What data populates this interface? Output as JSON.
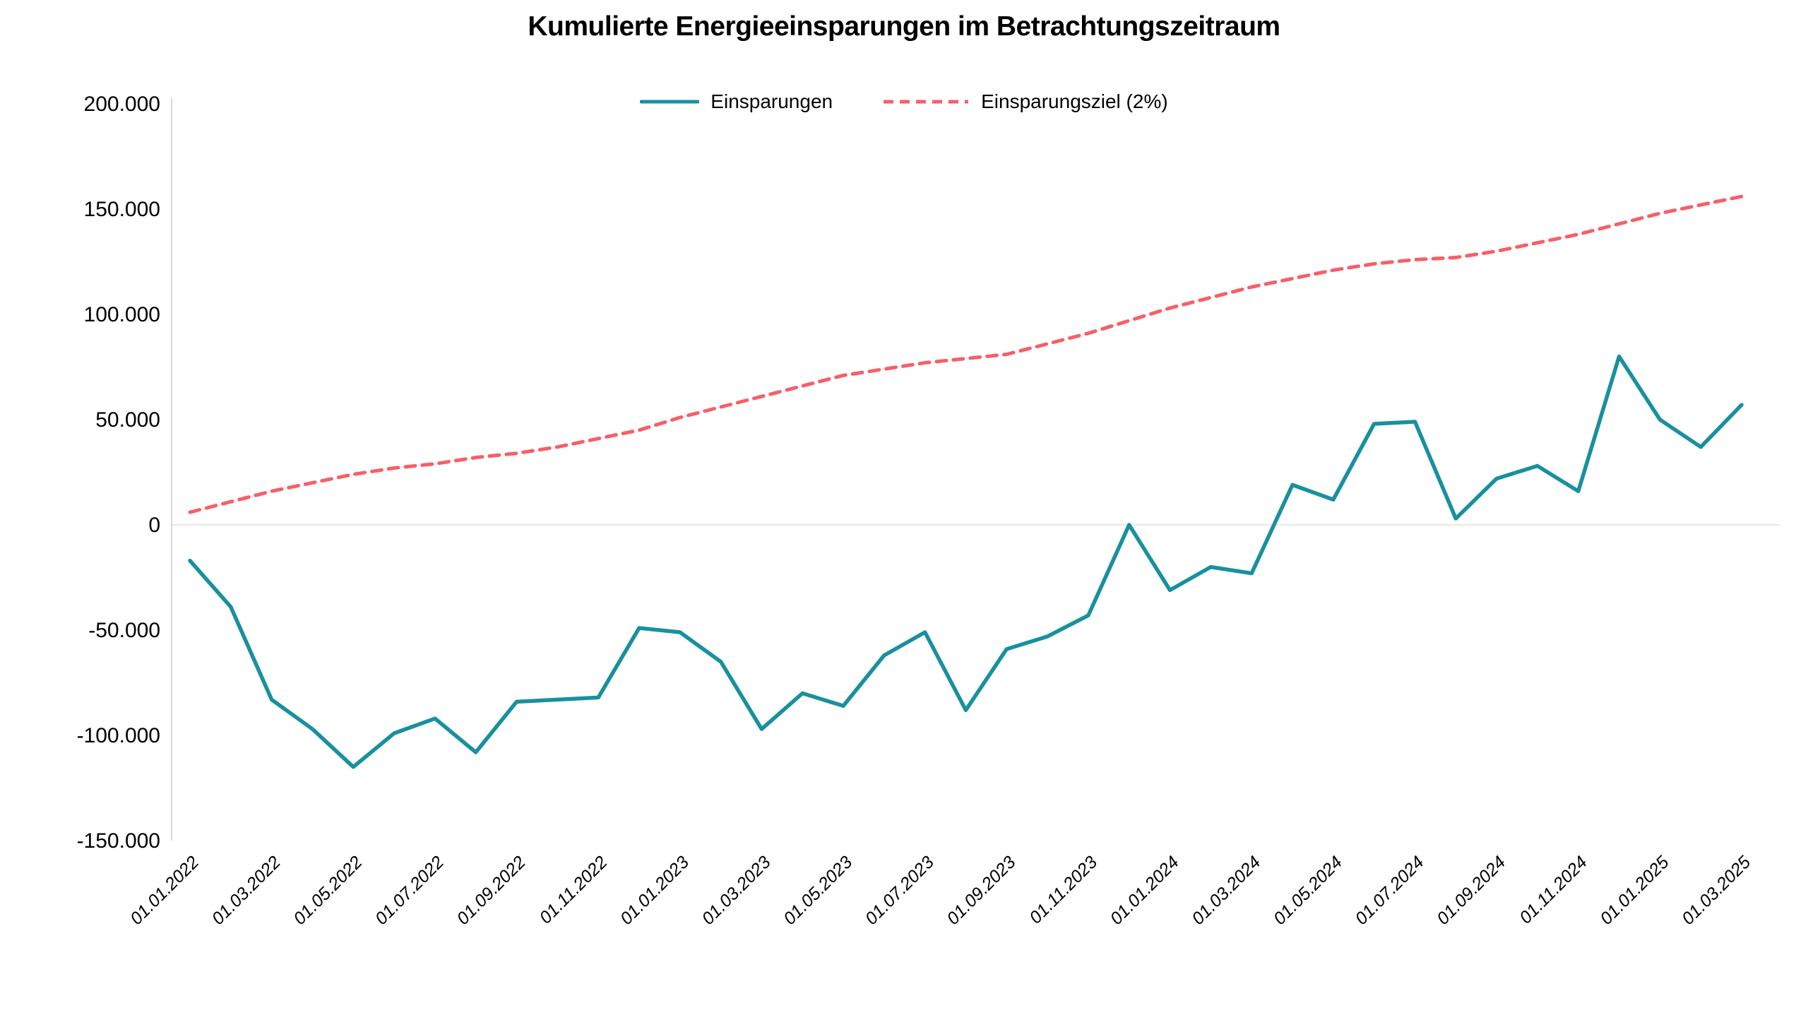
{
  "chart": {
    "colors": {
      "series_main": "#18909f",
      "series_target": "#f75f67",
      "grid_zero_line": "#e8e8e8",
      "axis_line": "#d9d9d9",
      "text": "#000000"
    }
  },
  "chart_data": {
    "type": "line",
    "title": "Kumulierte Energieeinsparungen im Betrachtungszeitraum",
    "xlabel": "",
    "ylabel": "",
    "grid": "horizontal-zero-line-only",
    "legend_position": "top-center",
    "ylim": [
      -150000,
      200000
    ],
    "y_ticks": [
      200000,
      150000,
      100000,
      50000,
      0,
      -50000,
      -100000,
      -150000
    ],
    "y_tick_labels": [
      "200.000",
      "150.000",
      "100.000",
      "50.000",
      "0",
      "-50.000",
      "-100.000",
      "-150.000"
    ],
    "x": [
      "01.01.2022",
      "01.02.2022",
      "01.03.2022",
      "01.04.2022",
      "01.05.2022",
      "01.06.2022",
      "01.07.2022",
      "01.08.2022",
      "01.09.2022",
      "01.10.2022",
      "01.11.2022",
      "01.12.2022",
      "01.01.2023",
      "01.02.2023",
      "01.03.2023",
      "01.04.2023",
      "01.05.2023",
      "01.06.2023",
      "01.07.2023",
      "01.08.2023",
      "01.09.2023",
      "01.10.2023",
      "01.11.2023",
      "01.12.2023",
      "01.01.2024",
      "01.02.2024",
      "01.03.2024",
      "01.04.2024",
      "01.05.2024",
      "01.06.2024",
      "01.07.2024",
      "01.08.2024",
      "01.09.2024",
      "01.10.2024",
      "01.11.2024",
      "01.12.2024",
      "01.01.2025",
      "01.02.2025",
      "01.03.2025"
    ],
    "x_tick_every": 2,
    "x_tick_labels": [
      "01.01.2022",
      "01.03.2022",
      "01.05.2022",
      "01.07.2022",
      "01.09.2022",
      "01.11.2022",
      "01.01.2023",
      "01.03.2023",
      "01.05.2023",
      "01.07.2023",
      "01.09.2023",
      "01.11.2023",
      "01.01.2024",
      "01.03.2024",
      "01.05.2024",
      "01.07.2024",
      "01.09.2024",
      "01.11.2024",
      "01.01.2025",
      "01.03.2025"
    ],
    "series": [
      {
        "name": "Einsparungen",
        "style": "solid",
        "color": "#18909f",
        "values": [
          -17000,
          -39000,
          -83000,
          -97000,
          -115000,
          -99000,
          -92000,
          -108000,
          -84000,
          -83000,
          -82000,
          -49000,
          -51000,
          -65000,
          -97000,
          -80000,
          -86000,
          -62000,
          -51000,
          -88000,
          -59000,
          -53000,
          -43000,
          0,
          -31000,
          -20000,
          -23000,
          19000,
          12000,
          48000,
          49000,
          3000,
          22000,
          28000,
          16000,
          80000,
          50000,
          37000,
          57000
        ]
      },
      {
        "name": "Einsparungsziel (2%)",
        "style": "dashed",
        "color": "#f75f67",
        "values": [
          6000,
          11000,
          16000,
          20000,
          24000,
          27000,
          29000,
          32000,
          34000,
          37000,
          41000,
          45000,
          51000,
          56000,
          61000,
          66000,
          71000,
          74000,
          77000,
          79000,
          81000,
          86000,
          91000,
          97000,
          103000,
          108000,
          113000,
          117000,
          121000,
          124000,
          126000,
          127000,
          130000,
          134000,
          138000,
          143000,
          148000,
          152000,
          156000
        ]
      }
    ]
  }
}
